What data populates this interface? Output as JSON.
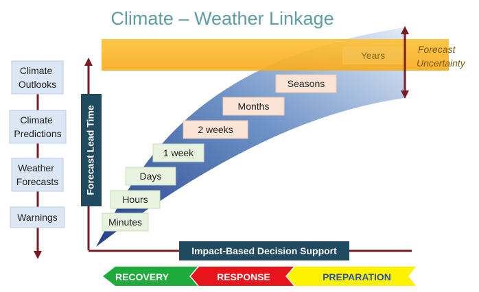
{
  "title": "Climate – Weather Linkage",
  "left_column": [
    {
      "label": "Climate\nOutlooks"
    },
    {
      "label": "Climate\nPredictions"
    },
    {
      "label": "Weather\nForecasts"
    },
    {
      "label": "Warnings"
    }
  ],
  "y_axis_label": "Forecast Lead Time",
  "x_axis_label": "Impact-Based Decision Support",
  "timescales": {
    "minutes": "Minutes",
    "hours": "Hours",
    "days": "Days",
    "week": "1 week",
    "weeks": "2 weeks",
    "months": "Months",
    "seasons": "Seasons",
    "years": "Years"
  },
  "uncertainty_label": "Forecast\nUncertainty",
  "phases": {
    "recovery": "RECOVERY",
    "response": "RESPONSE",
    "preparation": "PREPARATION"
  },
  "colors": {
    "title": "#5c9ea3",
    "axis_dark": "#1f4a60",
    "arrow_maroon": "#7a1a22",
    "left_box_fill": "#dbe7f4",
    "green_box_fill": "#e8f3df",
    "peach_box_fill": "#fbe4d6",
    "orange_band": "#fbb528",
    "recovery_green": "#1faa3c",
    "response_red": "#e8141b",
    "preparation_yellow": "#fff200",
    "preparation_text": "#2b55b5"
  }
}
